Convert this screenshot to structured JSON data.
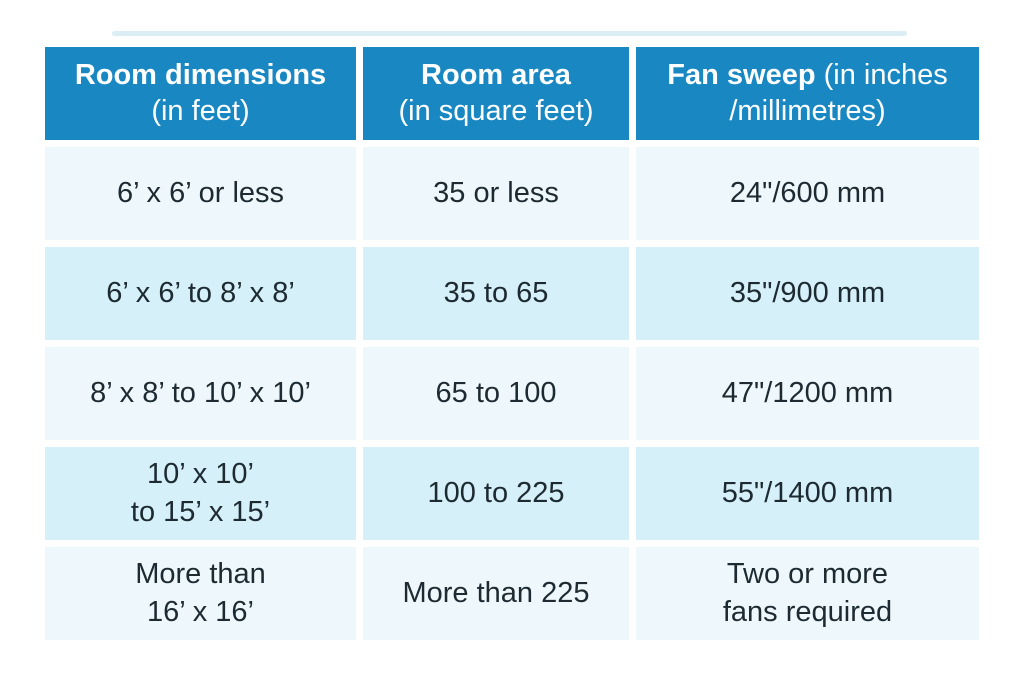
{
  "colors": {
    "header_bg": "#1987c1",
    "header_text": "#fdfeff",
    "row_odd_bg": "#eef8fc",
    "row_even_bg": "#d5f0f8",
    "body_text": "#1d2a32"
  },
  "table": {
    "headers": [
      {
        "bold": "Room dimensions",
        "line1_rest": "",
        "line2": "(in feet)"
      },
      {
        "bold": "Room area",
        "line1_rest": "",
        "line2": "(in square feet)"
      },
      {
        "bold": "Fan sweep",
        "line1_rest": " (in inches",
        "line2": "/millimetres)"
      }
    ],
    "rows": [
      [
        [
          "6’ x 6’ or less"
        ],
        [
          "35 or less"
        ],
        [
          "24\"/600 mm"
        ]
      ],
      [
        [
          "6’ x 6’ to 8’ x 8’"
        ],
        [
          "35 to 65"
        ],
        [
          "35\"/900 mm"
        ]
      ],
      [
        [
          "8’ x 8’ to 10’ x 10’"
        ],
        [
          "65 to 100"
        ],
        [
          "47\"/1200 mm"
        ]
      ],
      [
        [
          "10’ x 10’",
          "to 15’ x 15’"
        ],
        [
          "100 to 225"
        ],
        [
          "55\"/1400 mm"
        ]
      ],
      [
        [
          "More than",
          "16’ x 16’"
        ],
        [
          "More than 225"
        ],
        [
          "Two or more",
          "fans required"
        ]
      ]
    ]
  },
  "chart_data": {
    "type": "table",
    "title": "",
    "columns": [
      "Room dimensions (in feet)",
      "Room area (in square feet)",
      "Fan sweep (in inches /millimetres)"
    ],
    "rows": [
      [
        "6’ x 6’ or less",
        "35 or less",
        "24\"/600 mm"
      ],
      [
        "6’ x 6’ to 8’ x 8’",
        "35 to 65",
        "35\"/900 mm"
      ],
      [
        "8’ x 8’ to 10’ x 10’",
        "65 to 100",
        "47\"/1200 mm"
      ],
      [
        "10’ x 10’ to 15’ x 15’",
        "100 to 225",
        "55\"/1400 mm"
      ],
      [
        "More than 16’ x 16’",
        "More than 225",
        "Two or more fans required"
      ]
    ]
  }
}
